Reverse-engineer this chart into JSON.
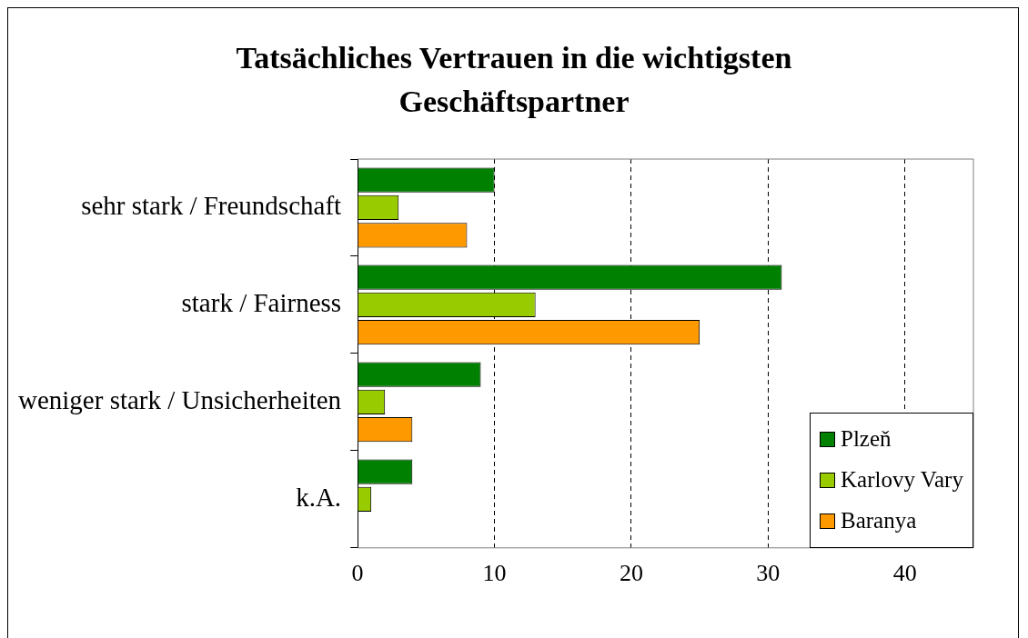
{
  "chart_data": {
    "type": "bar",
    "orientation": "horizontal",
    "title": "Tatsächliches Vertrauen in die wichtigsten Geschäftspartner",
    "categories": [
      "sehr stark / Freundschaft",
      "stark / Fairness",
      "weniger stark / Unsicherheiten",
      "k.A."
    ],
    "series": [
      {
        "name": "Plzeň",
        "color": "#008000",
        "values": [
          10,
          31,
          9,
          4
        ]
      },
      {
        "name": "Karlovy Vary",
        "color": "#99cc00",
        "values": [
          3,
          13,
          2,
          1
        ]
      },
      {
        "name": "Baranya",
        "color": "#ff9900",
        "values": [
          8,
          25,
          4,
          0
        ]
      }
    ],
    "xlim": [
      0,
      45
    ],
    "xticks": [
      0,
      10,
      20,
      30,
      40
    ],
    "grid": "x",
    "legend": "bottom right"
  }
}
